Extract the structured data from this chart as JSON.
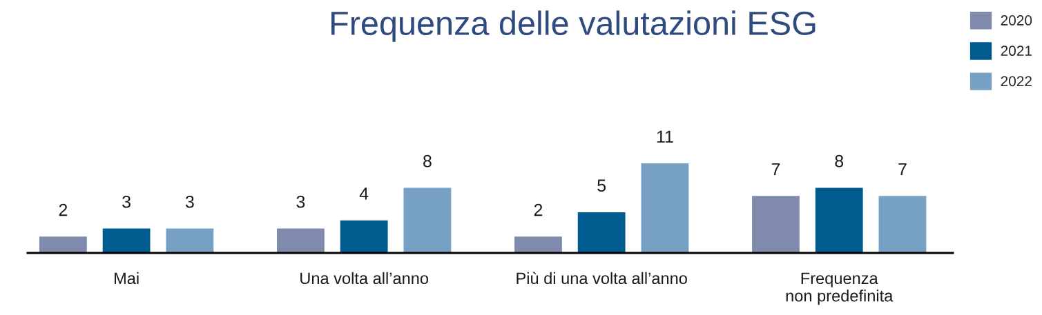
{
  "chart_data": {
    "type": "bar",
    "title": "Frequenza delle valutazioni ESG",
    "categories": [
      "Mai",
      "Una volta all’anno",
      "Più di una volta all’anno",
      "Frequenza\nnon predefinita"
    ],
    "series": [
      {
        "name": "2020",
        "color": "#7f8aad",
        "values": [
          2,
          3,
          2,
          7
        ]
      },
      {
        "name": "2021",
        "color": "#005b8f",
        "values": [
          3,
          4,
          5,
          8
        ]
      },
      {
        "name": "2022",
        "color": "#76a1c5",
        "values": [
          3,
          8,
          11,
          7
        ]
      }
    ],
    "data_labels": true,
    "legend": "top right",
    "tick_labels": "x"
  }
}
